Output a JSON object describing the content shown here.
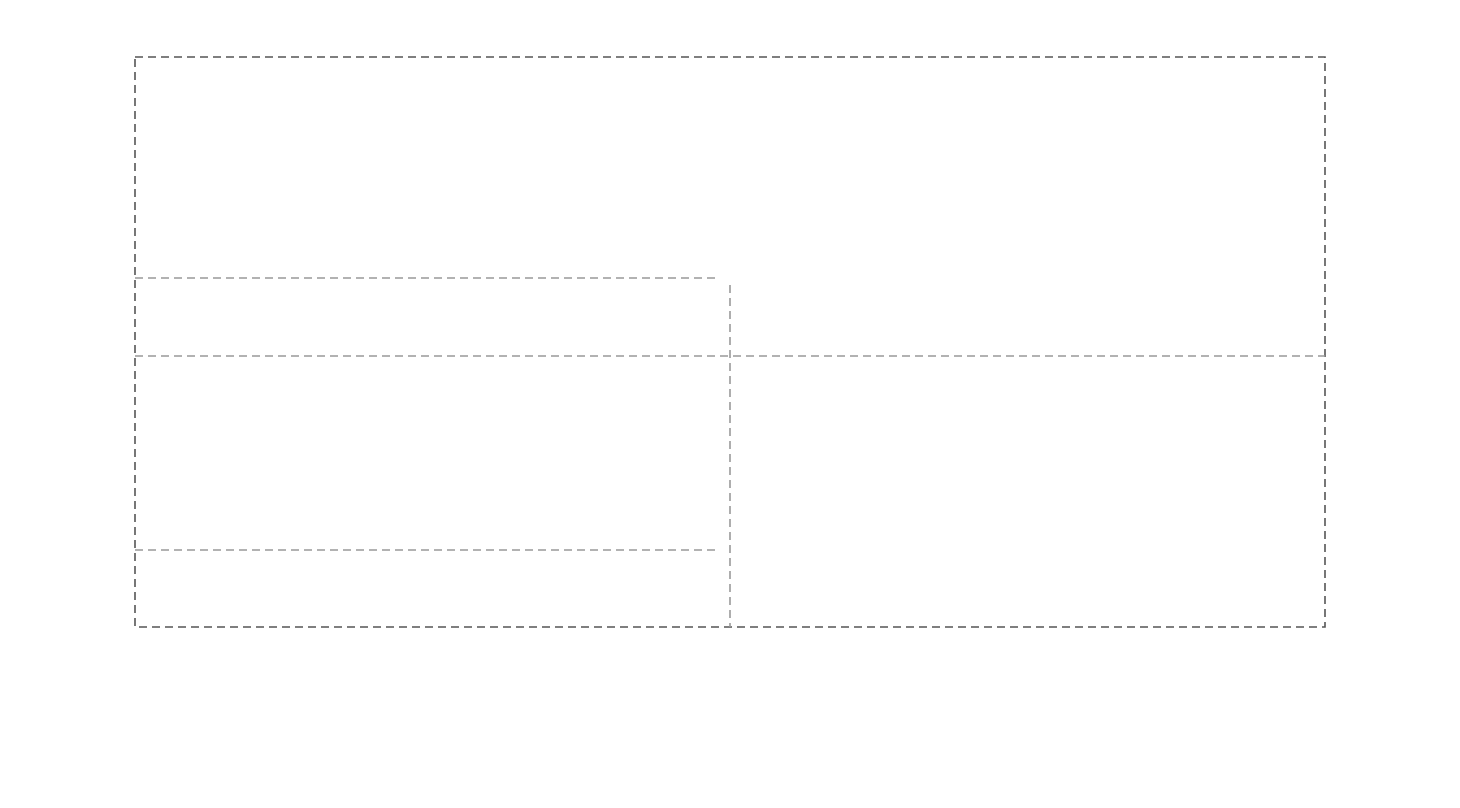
{
  "diagram": {
    "regions": [
      {
        "id": "outer-frame",
        "label": ""
      },
      {
        "id": "left-column-band",
        "label": ""
      },
      {
        "id": "middle-band",
        "label": ""
      },
      {
        "id": "left-lower-band",
        "label": ""
      },
      {
        "id": "vertical-divider",
        "label": ""
      }
    ],
    "colors": {
      "outer_border": "#555555",
      "inner_border": "#999999",
      "background": "#ffffff"
    },
    "line_style": "dashed"
  }
}
